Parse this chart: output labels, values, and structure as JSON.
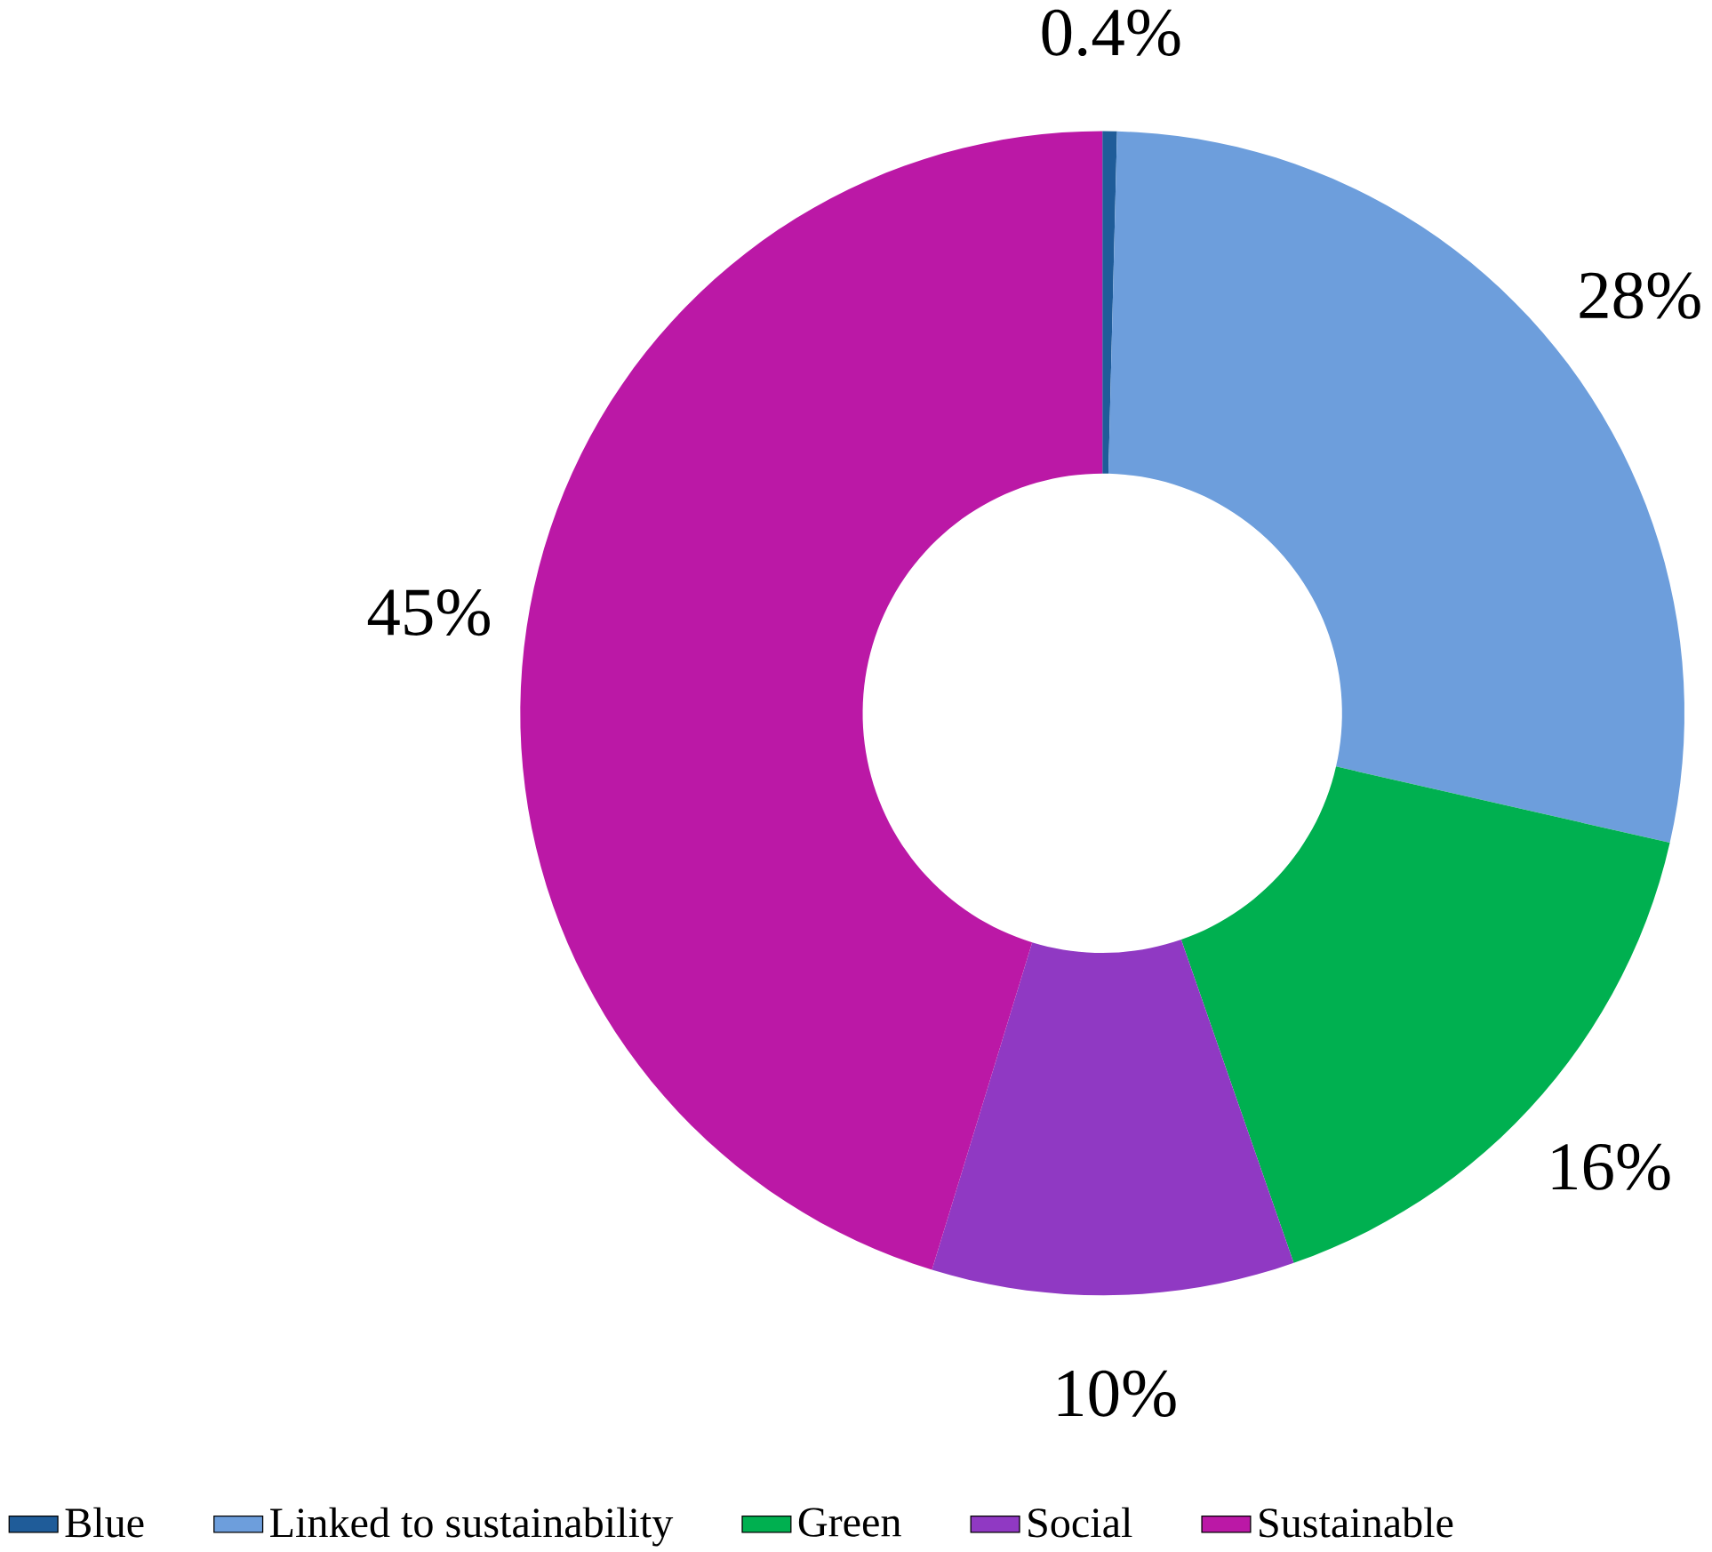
{
  "chart_data": {
    "type": "donut",
    "categories": [
      "Blue",
      "Linked to sustainability",
      "Green",
      "Social",
      "Sustainable"
    ],
    "values": [
      0.4,
      28,
      16,
      10,
      45
    ],
    "colors": [
      "#1f5c99",
      "#6d9edc",
      "#00b050",
      "#9039c3",
      "#bb18a6"
    ],
    "value_labels": [
      "0.4%",
      "28%",
      "16%",
      "10%",
      "45%"
    ],
    "legend": "bottom"
  }
}
